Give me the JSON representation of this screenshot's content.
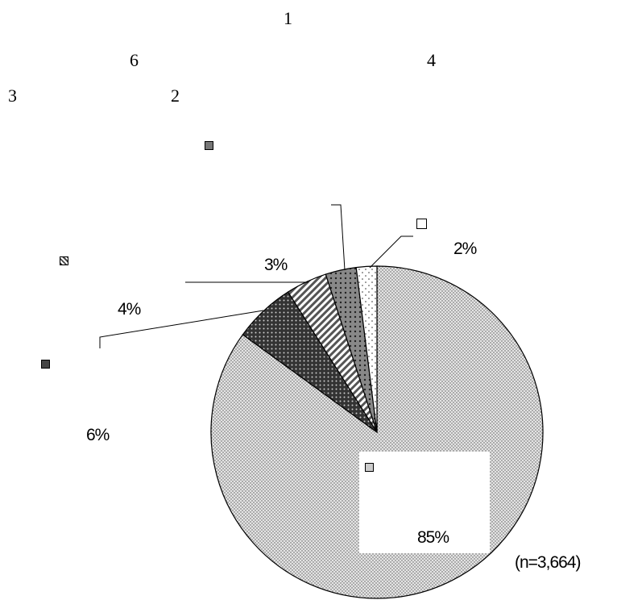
{
  "chart_data": {
    "type": "pie",
    "note": "(n=3,664)",
    "header_numbers": [
      "1",
      "6",
      "4",
      "3",
      "2"
    ],
    "slices": [
      {
        "label": "85%",
        "value": 85,
        "pattern": "fine-dots",
        "fill": "#d6d6d6"
      },
      {
        "label": "6%",
        "value": 6,
        "pattern": "dark-grid",
        "fill": "#505050"
      },
      {
        "label": "4%",
        "value": 4,
        "pattern": "diagonal",
        "fill": "#9a9a9a"
      },
      {
        "label": "3%",
        "value": 3,
        "pattern": "dots",
        "fill": "#808080"
      },
      {
        "label": "2%",
        "value": 2,
        "pattern": "sparse-dots",
        "fill": "#ffffff"
      }
    ]
  }
}
